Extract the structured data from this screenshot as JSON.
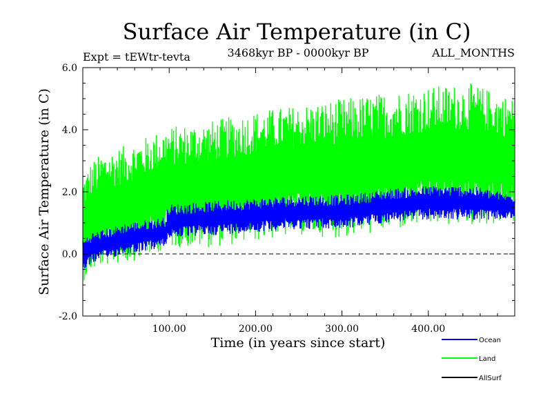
{
  "chart_data": {
    "type": "line",
    "title": "Surface Air Temperature (in C)",
    "experiment_label": "Expt = tEWtr-tevta",
    "period_label": "3468kyr BP - 0000kyr BP",
    "months_label": "ALL_MONTHS",
    "xlabel": "Time (in years since start)",
    "ylabel": "Surface Air Temperature (in C)",
    "xlim": [
      0,
      500
    ],
    "ylim": [
      -2.0,
      6.0
    ],
    "x_ticks": [
      100,
      200,
      300,
      400
    ],
    "x_tick_labels": [
      "100.00",
      "200.00",
      "300.00",
      "400.00"
    ],
    "y_ticks": [
      -2.0,
      0.0,
      2.0,
      4.0,
      6.0
    ],
    "y_tick_labels": [
      "-2.0",
      "0.0",
      "2.0",
      "4.0",
      "6.0"
    ],
    "reference_line": 0.0,
    "series": [
      {
        "name": "Land",
        "color": "#00ff00",
        "band_x": [
          0,
          10,
          25,
          50,
          75,
          100,
          150,
          200,
          250,
          300,
          350,
          400,
          450,
          500
        ],
        "band_low": [
          -0.9,
          -0.6,
          -0.4,
          -0.3,
          -0.1,
          0.2,
          0.2,
          0.4,
          0.6,
          0.5,
          0.7,
          0.9,
          0.9,
          1.0
        ],
        "band_high": [
          2.5,
          3.0,
          3.3,
          3.5,
          3.8,
          4.1,
          4.3,
          4.6,
          4.8,
          5.0,
          5.2,
          5.4,
          5.5,
          5.0
        ]
      },
      {
        "name": "Ocean",
        "color": "#0000ff",
        "band_x": [
          0,
          10,
          25,
          50,
          75,
          95,
          100,
          150,
          200,
          250,
          300,
          330,
          350,
          400,
          450,
          500
        ],
        "band_low": [
          -0.6,
          -0.3,
          -0.2,
          0.0,
          0.1,
          0.2,
          0.5,
          0.6,
          0.7,
          0.8,
          0.8,
          0.9,
          1.0,
          1.1,
          1.1,
          1.1
        ],
        "band_high": [
          0.5,
          0.7,
          0.8,
          1.0,
          1.1,
          1.2,
          1.6,
          1.7,
          1.8,
          1.9,
          1.9,
          2.0,
          2.1,
          2.2,
          2.2,
          1.9
        ]
      },
      {
        "name": "AllSurf",
        "color": "#000000"
      }
    ],
    "legend": [
      "Ocean",
      "Land",
      "AllSurf"
    ]
  }
}
